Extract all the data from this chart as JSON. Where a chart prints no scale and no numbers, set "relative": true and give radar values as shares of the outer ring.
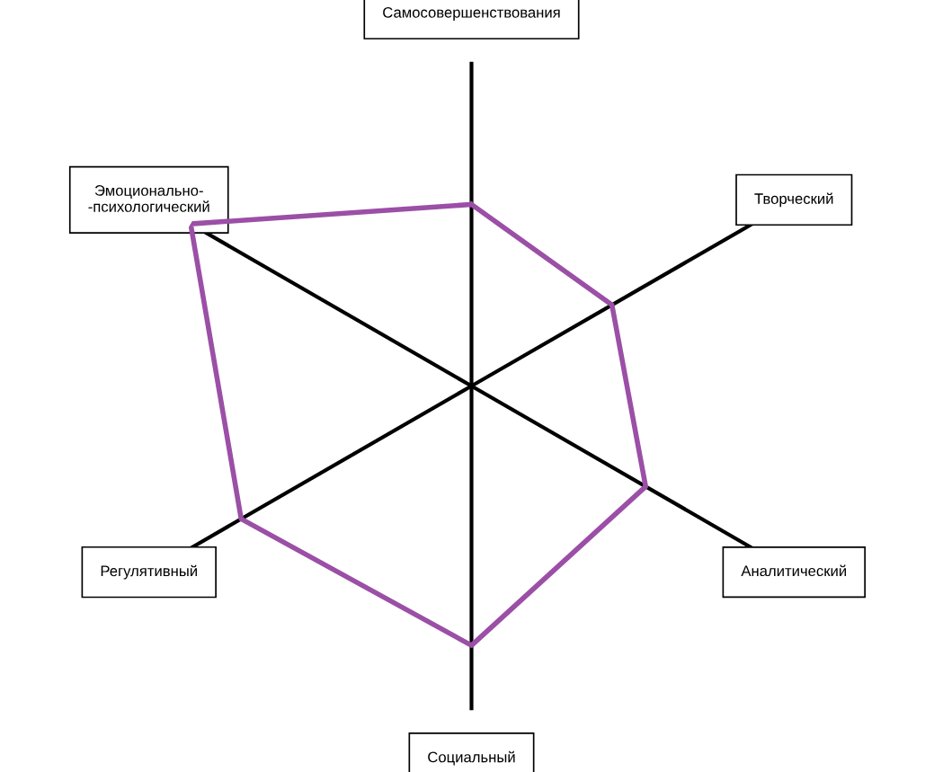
{
  "chart_data": {
    "type": "radar",
    "relative": true,
    "categories": [
      "Самосовершенствования",
      "Творческий",
      "Аналитический",
      "Социальный",
      "Регулятивный",
      "Эмоционально-\n-психологический"
    ],
    "series": [
      {
        "color": "#9b4fa6",
        "values": [
          0.56,
          0.5,
          0.62,
          0.8,
          0.82,
          1.0
        ]
      }
    ]
  }
}
